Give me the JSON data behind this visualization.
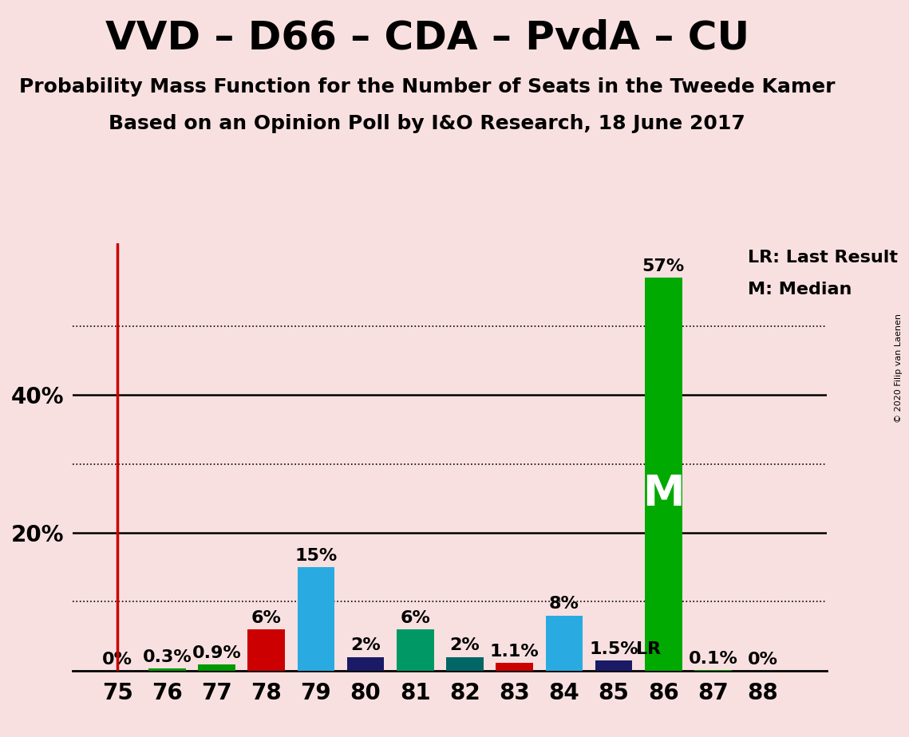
{
  "title": "VVD – D66 – CDA – PvdA – CU",
  "subtitle1": "Probability Mass Function for the Number of Seats in the Tweede Kamer",
  "subtitle2": "Based on an Opinion Poll by I&O Research, 18 June 2017",
  "copyright": "© 2020 Filip van Laenen",
  "background_color": "#f9e0e0",
  "seats": [
    75,
    76,
    77,
    78,
    79,
    80,
    81,
    82,
    83,
    84,
    85,
    86,
    87,
    88
  ],
  "values": [
    0.0,
    0.3,
    0.9,
    6.0,
    15.0,
    2.0,
    6.0,
    2.0,
    1.1,
    8.0,
    1.5,
    57.0,
    0.1,
    0.0
  ],
  "labels": [
    "0%",
    "0.3%",
    "0.9%",
    "6%",
    "15%",
    "2%",
    "6%",
    "2%",
    "1.1%",
    "8%",
    "1.5%",
    "57%",
    "0.1%",
    "0%"
  ],
  "colors": [
    "#cc0000",
    "#009900",
    "#009900",
    "#cc0000",
    "#29abe2",
    "#1a1a66",
    "#009966",
    "#006666",
    "#cc0000",
    "#29abe2",
    "#1a1a66",
    "#00aa00",
    "#00aa00",
    "#1a1a66"
  ],
  "last_result_seat": 85,
  "median_seat": 86,
  "median_label": "M",
  "lr_label": "LR",
  "vline_seat": 75,
  "vline_color": "#cc0000",
  "ylim_max": 62,
  "solid_yticks": [
    20,
    40
  ],
  "dotted_yticks": [
    10,
    30,
    50
  ],
  "legend_lr": "LR: Last Result",
  "legend_m": "M: Median",
  "title_fontsize": 36,
  "subtitle_fontsize": 18,
  "label_fontsize": 16,
  "tick_fontsize": 20,
  "bar_label_fontsize": 16,
  "bar_width": 0.75,
  "xlim_left": 74.1,
  "xlim_right": 89.3
}
